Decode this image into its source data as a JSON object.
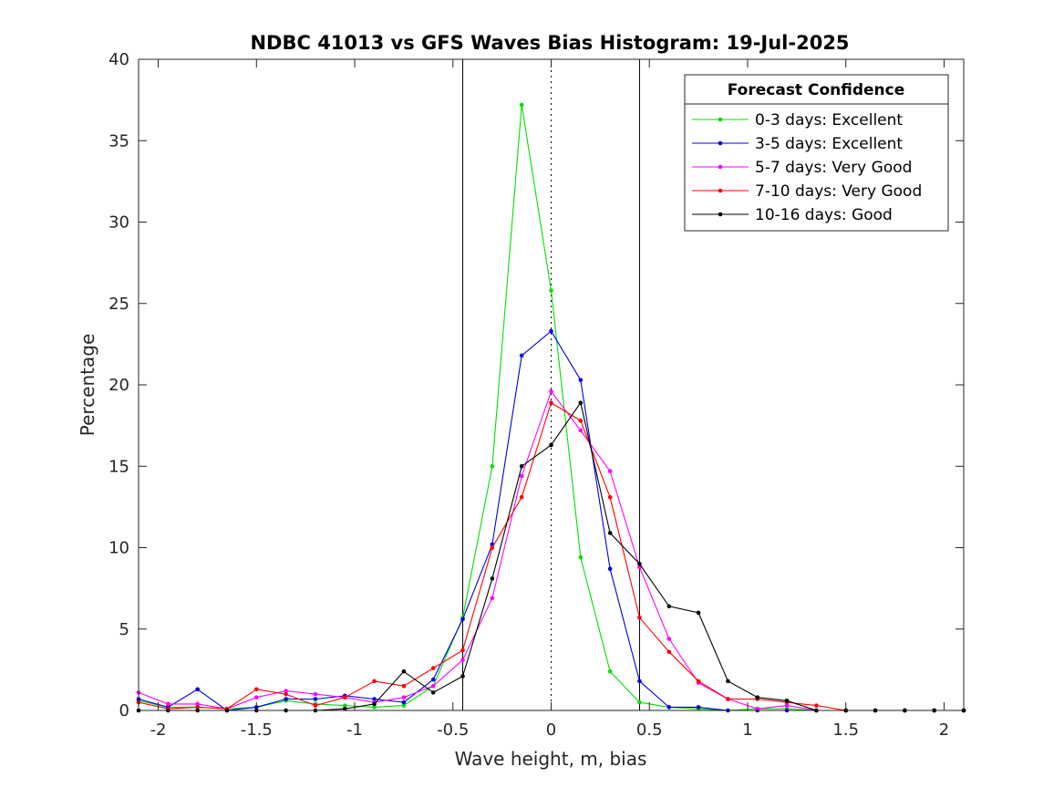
{
  "chart_data": {
    "type": "line",
    "title": "NDBC 41013 vs GFS Waves Bias Histogram: 19-Jul-2025",
    "xlabel": "Wave height, m, bias",
    "ylabel": "Percentage",
    "xlim": [
      -2.1,
      2.1
    ],
    "ylim": [
      0,
      40
    ],
    "xticks": [
      -2,
      -1.5,
      -1,
      -0.5,
      0,
      0.5,
      1,
      1.5,
      2
    ],
    "xtick_labels": [
      "-2",
      "-1.5",
      "-1",
      "-0.5",
      "0",
      "0.5",
      "1",
      "1.5",
      "2"
    ],
    "yticks": [
      0,
      5,
      10,
      15,
      20,
      25,
      30,
      35,
      40
    ],
    "ytick_labels": [
      "0",
      "5",
      "10",
      "15",
      "20",
      "25",
      "30",
      "35",
      "40"
    ],
    "reference_lines": [
      {
        "x": -0.45,
        "style": "solid"
      },
      {
        "x": 0,
        "style": "dotted"
      },
      {
        "x": 0.45,
        "style": "solid"
      }
    ],
    "legend": {
      "title": "Forecast Confidence",
      "position": "top-right"
    },
    "grid": false,
    "x": [
      -2.1,
      -1.95,
      -1.8,
      -1.65,
      -1.5,
      -1.35,
      -1.2,
      -1.05,
      -0.9,
      -0.75,
      -0.6,
      -0.45,
      -0.3,
      -0.15,
      0,
      0.15,
      0.3,
      0.45,
      0.6,
      0.75,
      0.9,
      1.05,
      1.2,
      1.35,
      1.5,
      1.65,
      1.8,
      1.95,
      2.1
    ],
    "series": [
      {
        "name": "0-3 days: Excellent",
        "color": "#00e000",
        "values": [
          0.6,
          0.2,
          0.2,
          0.1,
          0.2,
          0.6,
          0.4,
          0.3,
          0.2,
          0.3,
          1.5,
          5.7,
          15.0,
          37.2,
          25.8,
          9.4,
          2.4,
          0.5,
          0.2,
          0.1,
          0.0,
          0.1,
          0.1,
          0.0,
          0.0,
          0.0,
          0.0,
          0.0,
          0.0
        ]
      },
      {
        "name": "3-5 days: Excellent",
        "color": "#0000e0",
        "values": [
          0.7,
          0.2,
          1.3,
          0.0,
          0.2,
          0.7,
          0.7,
          0.9,
          0.7,
          0.5,
          1.9,
          5.6,
          10.2,
          21.8,
          23.3,
          20.3,
          8.7,
          1.8,
          0.2,
          0.2,
          0.0,
          0.0,
          0.0,
          0.0,
          0.0,
          0.0,
          0.0,
          0.0,
          0.0
        ]
      },
      {
        "name": "5-7 days: Very Good",
        "color": "#ff00ff",
        "values": [
          1.1,
          0.4,
          0.4,
          0.1,
          0.8,
          1.2,
          1.0,
          0.8,
          0.5,
          0.8,
          1.5,
          3.1,
          6.9,
          14.4,
          19.6,
          17.2,
          14.7,
          8.8,
          4.4,
          1.7,
          0.7,
          0.1,
          0.3,
          0.0,
          0.0,
          0.0,
          0.0,
          0.0,
          0.0
        ]
      },
      {
        "name": "7-10 days: Very Good",
        "color": "#ff0000",
        "values": [
          0.5,
          0.1,
          0.2,
          0.1,
          1.3,
          1.0,
          0.3,
          0.8,
          1.8,
          1.5,
          2.6,
          3.7,
          10.0,
          13.1,
          18.9,
          17.8,
          13.1,
          5.7,
          3.6,
          1.8,
          0.7,
          0.7,
          0.5,
          0.3,
          0.0,
          0.0,
          0.0,
          0.0,
          0.0
        ]
      },
      {
        "name": "10-16 days: Good",
        "color": "#000000",
        "values": [
          0.0,
          0.0,
          0.0,
          0.0,
          0.0,
          0.0,
          0.0,
          0.1,
          0.4,
          2.4,
          1.1,
          2.1,
          8.1,
          15.0,
          16.3,
          18.9,
          10.9,
          9.0,
          6.4,
          6.0,
          1.8,
          0.8,
          0.6,
          0.0,
          0.0,
          0.0,
          0.0,
          0.0,
          0.0
        ]
      }
    ]
  }
}
